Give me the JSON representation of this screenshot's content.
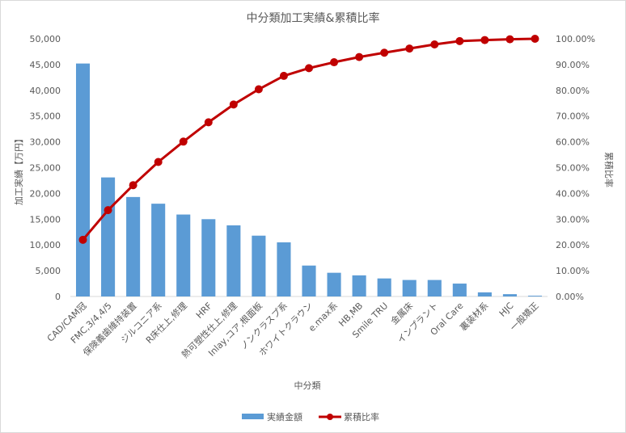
{
  "chart_data": {
    "type": "bar+line",
    "title": "中分類加工実績&累積比率",
    "xlabel": "中分類",
    "ylabel": "加工実績【万円】",
    "y2label": "累積比率",
    "ylim": [
      0,
      50000
    ],
    "y2lim": [
      0,
      100
    ],
    "yticks": [
      "0",
      "5,000",
      "10,000",
      "15,000",
      "20,000",
      "25,000",
      "30,000",
      "35,000",
      "40,000",
      "45,000",
      "50,000"
    ],
    "y2ticks": [
      "0.00%",
      "10.00%",
      "20.00%",
      "30.00%",
      "40.00%",
      "50.00%",
      "60.00%",
      "70.00%",
      "80.00%",
      "90.00%",
      "100.00%"
    ],
    "categories": [
      "CAD/CAM冠",
      "FMC,3/4,4/5",
      "保険義歯維持装置",
      "ジルコニア系",
      "R床仕上,修理",
      "HRF",
      "熱可塑性仕上,修理",
      "Inlay,コア,根面板",
      "ノンクラスプ系",
      "ホワイトクラウン",
      "e.max系",
      "HB,MB",
      "Smile TRU",
      "金属床",
      "インプラント",
      "Oral Care",
      "裏装材系",
      "HJC",
      "一般矯正"
    ],
    "series": [
      {
        "name": "実績金額",
        "type": "bar",
        "color": "#5b9bd5",
        "values": [
          45200,
          23100,
          19300,
          18000,
          15900,
          15000,
          13800,
          11800,
          10500,
          6000,
          4600,
          4100,
          3500,
          3200,
          3200,
          2500,
          800,
          450,
          150
        ]
      },
      {
        "name": "累積比率",
        "type": "line",
        "color": "#c00000",
        "values": [
          22.0,
          33.5,
          43.2,
          52.2,
          60.1,
          67.6,
          74.5,
          80.4,
          85.6,
          88.6,
          90.9,
          92.9,
          94.6,
          96.2,
          97.8,
          99.1,
          99.5,
          99.8,
          100.0
        ]
      }
    ],
    "legend_position": "bottom",
    "grid": false
  }
}
